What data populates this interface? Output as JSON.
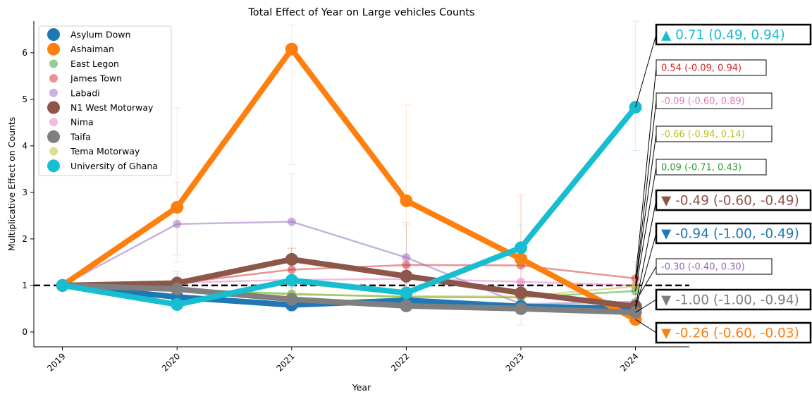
{
  "chart_data": {
    "type": "line",
    "title": "Total Effect of Year on Large vehicles Counts",
    "xlabel": "Year",
    "ylabel": "Multiplicative Effect on Counts",
    "x": [
      "2019",
      "2020",
      "2021",
      "2022",
      "2023",
      "2024"
    ],
    "xlim": [
      2018.75,
      2024.47
    ],
    "ylim": [
      -0.32,
      6.68
    ],
    "yticks": [
      "0",
      "1",
      "2",
      "3",
      "4",
      "5",
      "6"
    ],
    "reference_line": 1,
    "legend_position": "upper-left",
    "series": [
      {
        "name": "Asylum Down",
        "color": "#1f77b4",
        "emphasis": "bold",
        "values": [
          1.0,
          0.75,
          0.58,
          0.68,
          0.55,
          0.5
        ],
        "errors": [
          [
            1.0,
            1.0
          ],
          [
            0.6,
            0.95
          ],
          [
            0.45,
            0.75
          ],
          [
            0.55,
            0.85
          ],
          [
            0.4,
            0.7
          ],
          [
            0.35,
            0.65
          ]
        ]
      },
      {
        "name": "Ashaiman",
        "color": "#ff7f0e",
        "emphasis": "bold",
        "values": [
          1.0,
          2.68,
          6.08,
          2.82,
          1.57,
          0.27
        ],
        "errors": [
          [
            1.0,
            1.0
          ],
          [
            1.5,
            4.82
          ],
          [
            3.6,
            6.6
          ],
          [
            1.6,
            4.88
          ],
          [
            0.9,
            2.9
          ],
          [
            0.15,
            0.6
          ]
        ]
      },
      {
        "name": "East Legon",
        "color": "#2ca02c",
        "emphasis": "light",
        "values": [
          1.0,
          0.92,
          0.82,
          0.75,
          0.74,
          0.88
        ],
        "errors": [
          [
            1.0,
            1.0
          ],
          [
            0.8,
            1.05
          ],
          [
            0.7,
            0.95
          ],
          [
            0.65,
            0.9
          ],
          [
            0.6,
            0.9
          ],
          [
            0.7,
            1.05
          ]
        ]
      },
      {
        "name": "James Town",
        "color": "#d62728",
        "emphasis": "light",
        "values": [
          1.0,
          1.05,
          1.34,
          1.44,
          1.43,
          1.15
        ],
        "errors": [
          [
            1.0,
            1.0
          ],
          [
            0.8,
            1.3
          ],
          [
            1.0,
            1.8
          ],
          [
            1.1,
            2.35
          ],
          [
            0.9,
            2.95
          ],
          [
            0.8,
            1.5
          ]
        ]
      },
      {
        "name": "Labadi",
        "color": "#9467bd",
        "emphasis": "light",
        "values": [
          1.0,
          2.32,
          2.37,
          1.6,
          0.6,
          0.65
        ],
        "errors": [
          [
            1.0,
            1.0
          ],
          [
            1.65,
            3.22
          ],
          [
            1.6,
            3.4
          ],
          [
            1.0,
            2.3
          ],
          [
            0.4,
            0.9
          ],
          [
            0.45,
            0.9
          ]
        ]
      },
      {
        "name": "N1 West Motorway",
        "color": "#8c564b",
        "emphasis": "bold",
        "values": [
          1.0,
          1.05,
          1.56,
          1.2,
          0.84,
          0.55
        ],
        "errors": [
          [
            1.0,
            1.0
          ],
          [
            0.9,
            1.2
          ],
          [
            1.35,
            1.8
          ],
          [
            1.05,
            1.4
          ],
          [
            0.7,
            1.0
          ],
          [
            0.45,
            0.65
          ]
        ]
      },
      {
        "name": "Nima",
        "color": "#e377c2",
        "emphasis": "light",
        "values": [
          1.0,
          1.06,
          1.12,
          1.14,
          1.08,
          1.0
        ],
        "errors": [
          [
            1.0,
            1.0
          ],
          [
            0.9,
            1.25
          ],
          [
            0.95,
            1.35
          ],
          [
            0.95,
            1.4
          ],
          [
            0.9,
            1.3
          ],
          [
            0.8,
            1.2
          ]
        ]
      },
      {
        "name": "Taifa",
        "color": "#7f7f7f",
        "emphasis": "bold",
        "values": [
          1.0,
          0.92,
          0.7,
          0.56,
          0.5,
          0.42
        ],
        "errors": [
          [
            1.0,
            1.0
          ],
          [
            0.8,
            1.05
          ],
          [
            0.6,
            0.82
          ],
          [
            0.45,
            0.68
          ],
          [
            0.15,
            0.75
          ],
          [
            0.3,
            0.55
          ]
        ]
      },
      {
        "name": "Tema Motorway",
        "color": "#bcbd22",
        "emphasis": "light",
        "values": [
          1.0,
          0.9,
          0.8,
          0.77,
          0.76,
          0.98
        ],
        "errors": [
          [
            1.0,
            1.0
          ],
          [
            0.75,
            1.05
          ],
          [
            0.65,
            0.95
          ],
          [
            0.6,
            0.95
          ],
          [
            0.6,
            0.95
          ],
          [
            0.8,
            1.15
          ]
        ]
      },
      {
        "name": "University of Ghana",
        "color": "#17becf",
        "emphasis": "bold",
        "values": [
          1.0,
          0.59,
          1.11,
          0.84,
          1.81,
          4.83
        ],
        "errors": [
          [
            1.0,
            1.0
          ],
          [
            0.45,
            0.75
          ],
          [
            0.9,
            1.35
          ],
          [
            0.65,
            1.05
          ],
          [
            1.4,
            2.3
          ],
          [
            3.9,
            6.68
          ]
        ]
      }
    ],
    "annotations": [
      {
        "text": "▲ 0.71 (0.49, 0.94)",
        "color": "#17becf",
        "emphasis": "bold",
        "series": 9
      },
      {
        "text": "0.54 (-0.09, 0.94)",
        "color": "#d62728",
        "emphasis": "light",
        "series": 3
      },
      {
        "text": "-0.09 (-0.60, 0.89)",
        "color": "#e377c2",
        "emphasis": "light",
        "series": 6
      },
      {
        "text": "-0.66 (-0.94, 0.14)",
        "color": "#bcbd22",
        "emphasis": "light",
        "series": 8
      },
      {
        "text": "0.09 (-0.71, 0.43)",
        "color": "#2ca02c",
        "emphasis": "light",
        "series": 2
      },
      {
        "text": "▼ -0.49 (-0.60, -0.49)",
        "color": "#8c564b",
        "emphasis": "bold",
        "series": 5
      },
      {
        "text": "▼ -0.94 (-1.00, -0.49)",
        "color": "#1f77b4",
        "emphasis": "bold",
        "series": 0
      },
      {
        "text": "-0.30 (-0.40, 0.30)",
        "color": "#9467bd",
        "emphasis": "light",
        "series": 4
      },
      {
        "text": "▼ -1.00 (-1.00, -0.94)",
        "color": "#7f7f7f",
        "emphasis": "bold",
        "series": 7
      },
      {
        "text": "▼ -0.26 (-0.60, -0.03)",
        "color": "#ff7f0e",
        "emphasis": "bold",
        "series": 1
      }
    ]
  }
}
